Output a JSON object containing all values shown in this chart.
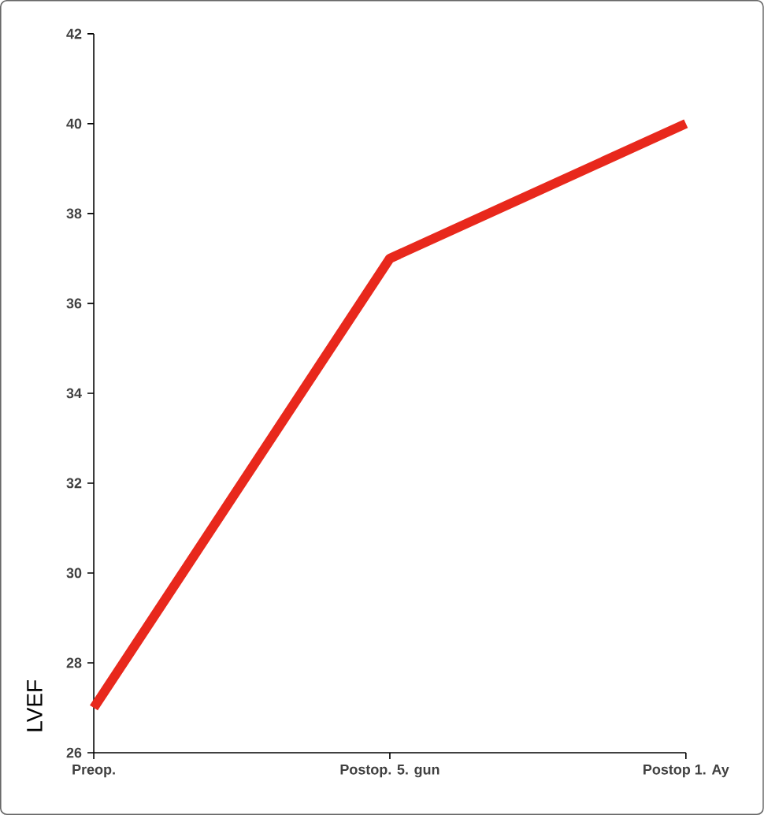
{
  "chart_data": {
    "type": "line",
    "ylabel": "LVEF",
    "categories": [
      "Preop.",
      "Postop. 5. gun",
      "Postop 1. Ay"
    ],
    "series": [
      {
        "color": "#e8281c",
        "values": [
          27,
          37,
          40
        ]
      }
    ],
    "ylim": [
      26,
      42
    ],
    "yticks": [
      26,
      28,
      30,
      32,
      34,
      36,
      38,
      40,
      42
    ],
    "grid": false,
    "marker": "none",
    "line_style": "solid"
  }
}
